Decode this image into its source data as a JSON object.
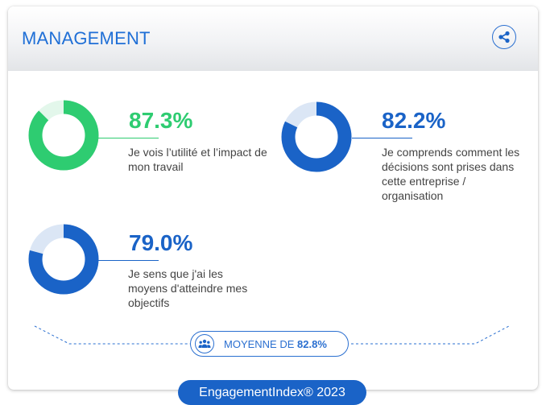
{
  "header": {
    "title": "MANAGEMENT",
    "share_icon": "share-icon"
  },
  "metrics": [
    {
      "value_label": "87.3%",
      "value": 87.3,
      "description": "Je vois l’utilité et l’impact de mon travail",
      "color": "#2ecc71",
      "track_color": "#e3f7eb"
    },
    {
      "value_label": "82.2%",
      "value": 82.2,
      "description": "Je comprends comment les décisions sont prises dans cette entreprise / organisation",
      "color": "#1a63c7",
      "track_color": "#dbe6f5"
    },
    {
      "value_label": "79.0%",
      "value": 79.0,
      "description": "Je sens que j'ai les moyens d'atteindre mes objectifs",
      "color": "#1a63c7",
      "track_color": "#dbe6f5"
    }
  ],
  "average": {
    "label": "MOYENNE DE",
    "value": "82.8%",
    "icon": "group-icon"
  },
  "footer": {
    "label": "EngagementIndex® 2023"
  },
  "colors": {
    "accent_blue": "#1a63c7",
    "accent_green": "#2ecc71",
    "text_gray": "#444444"
  }
}
